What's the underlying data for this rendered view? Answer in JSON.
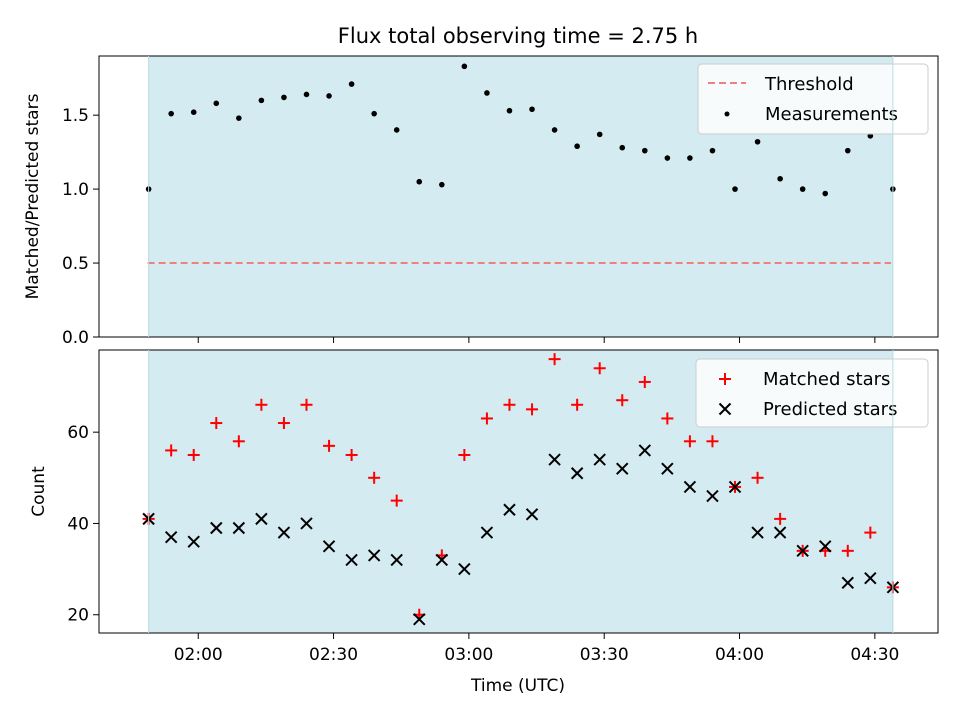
{
  "title": "Flux total observing time = 2.75 h",
  "colors": {
    "span": "#d4ebf1",
    "threshold": "#f08080",
    "measurement": "#000000",
    "matched": "#ff0000",
    "predicted": "#000000"
  },
  "x_tick_labels": [
    "02:00",
    "02:30",
    "03:00",
    "03:30",
    "04:00",
    "04:30"
  ],
  "chart_data": [
    {
      "type": "scatter",
      "ylabel": "Matched/Predicted stars",
      "xlabel": "",
      "ylim": [
        0,
        1.9
      ],
      "yticks": [
        "0.0",
        "0.5",
        "1.0",
        "1.5"
      ],
      "shaded_span_x": [
        "01:49",
        "04:34"
      ],
      "legend_position": "top-right",
      "threshold": {
        "name": "Threshold",
        "value": 0.5,
        "style": "dashed"
      },
      "series": [
        {
          "name": "Measurements",
          "x": [
            "01:49",
            "01:54",
            "01:59",
            "02:04",
            "02:09",
            "02:14",
            "02:19",
            "02:24",
            "02:29",
            "02:34",
            "02:39",
            "02:44",
            "02:49",
            "02:54",
            "02:59",
            "03:04",
            "03:09",
            "03:14",
            "03:19",
            "03:24",
            "03:29",
            "03:34",
            "03:39",
            "03:44",
            "03:49",
            "03:54",
            "03:59",
            "04:04",
            "04:09",
            "04:14",
            "04:19",
            "04:24",
            "04:29",
            "04:34"
          ],
          "values": [
            1.0,
            1.51,
            1.52,
            1.58,
            1.48,
            1.6,
            1.62,
            1.64,
            1.63,
            1.71,
            1.51,
            1.4,
            1.05,
            1.03,
            1.83,
            1.65,
            1.53,
            1.54,
            1.4,
            1.29,
            1.37,
            1.28,
            1.26,
            1.21,
            1.21,
            1.26,
            1.0,
            1.32,
            1.07,
            1.0,
            0.97,
            1.26,
            1.36,
            1.0
          ]
        }
      ]
    },
    {
      "type": "scatter",
      "ylabel": "Count",
      "xlabel": "Time (UTC)",
      "ylim": [
        16,
        78
      ],
      "yticks": [
        "20",
        "40",
        "60"
      ],
      "shaded_span_x": [
        "01:49",
        "04:34"
      ],
      "legend_position": "top-right",
      "series": [
        {
          "name": "Matched stars",
          "marker": "plus",
          "x": [
            "01:49",
            "01:54",
            "01:59",
            "02:04",
            "02:09",
            "02:14",
            "02:19",
            "02:24",
            "02:29",
            "02:34",
            "02:39",
            "02:44",
            "02:49",
            "02:54",
            "02:59",
            "03:04",
            "03:09",
            "03:14",
            "03:19",
            "03:24",
            "03:29",
            "03:34",
            "03:39",
            "03:44",
            "03:49",
            "03:54",
            "03:59",
            "04:04",
            "04:09",
            "04:14",
            "04:19",
            "04:24",
            "04:29",
            "04:34"
          ],
          "values": [
            41,
            56,
            55,
            62,
            58,
            66,
            62,
            66,
            57,
            55,
            50,
            45,
            20,
            33,
            55,
            63,
            66,
            65,
            76,
            66,
            74,
            67,
            71,
            63,
            58,
            58,
            48,
            50,
            41,
            34,
            34,
            34,
            38,
            26
          ]
        },
        {
          "name": "Predicted stars",
          "marker": "x",
          "x": [
            "01:49",
            "01:54",
            "01:59",
            "02:04",
            "02:09",
            "02:14",
            "02:19",
            "02:24",
            "02:29",
            "02:34",
            "02:39",
            "02:44",
            "02:49",
            "02:54",
            "02:59",
            "03:04",
            "03:09",
            "03:14",
            "03:19",
            "03:24",
            "03:29",
            "03:34",
            "03:39",
            "03:44",
            "03:49",
            "03:54",
            "03:59",
            "04:04",
            "04:09",
            "04:14",
            "04:19",
            "04:24",
            "04:29",
            "04:34"
          ],
          "values": [
            41,
            37,
            36,
            39,
            39,
            41,
            38,
            40,
            35,
            32,
            33,
            32,
            19,
            32,
            30,
            38,
            43,
            42,
            54,
            51,
            54,
            52,
            56,
            52,
            48,
            46,
            48,
            38,
            38,
            34,
            35,
            27,
            28,
            26
          ]
        }
      ]
    }
  ]
}
